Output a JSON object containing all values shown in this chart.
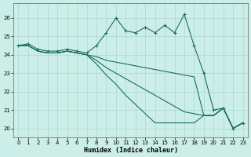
{
  "title": "",
  "xlabel": "Humidex (Indice chaleur)",
  "xlim": [
    -0.5,
    23.5
  ],
  "ylim": [
    19.5,
    26.8
  ],
  "yticks": [
    20,
    21,
    22,
    23,
    24,
    25,
    26
  ],
  "xticks": [
    0,
    1,
    2,
    3,
    4,
    5,
    6,
    7,
    8,
    9,
    10,
    11,
    12,
    13,
    14,
    15,
    16,
    17,
    18,
    19,
    20,
    21,
    22,
    23
  ],
  "background_color": "#cceee8",
  "grid_color": "#aad8d0",
  "line_color": "#1a6e60",
  "line1": [
    24.5,
    24.6,
    24.3,
    24.2,
    24.2,
    24.3,
    24.2,
    24.1,
    24.5,
    25.2,
    26.0,
    25.3,
    25.2,
    25.5,
    25.2,
    25.6,
    25.2,
    26.2,
    24.5,
    23.0,
    21.0,
    21.1,
    20.0,
    20.3
  ],
  "line2": [
    24.5,
    24.5,
    24.2,
    24.1,
    24.1,
    24.2,
    24.1,
    24.0,
    23.9,
    23.7,
    23.6,
    23.5,
    23.4,
    23.3,
    23.2,
    23.1,
    23.0,
    22.9,
    22.8,
    20.7,
    20.7,
    21.1,
    20.0,
    20.3
  ],
  "line3": [
    24.5,
    24.5,
    24.2,
    24.1,
    24.1,
    24.2,
    24.1,
    24.0,
    23.7,
    23.3,
    23.0,
    22.7,
    22.4,
    22.1,
    21.8,
    21.5,
    21.2,
    20.9,
    20.8,
    20.7,
    20.7,
    21.1,
    20.0,
    20.3
  ],
  "line4": [
    24.5,
    24.5,
    24.2,
    24.1,
    24.1,
    24.2,
    24.1,
    24.0,
    23.5,
    22.9,
    22.4,
    21.8,
    21.3,
    20.8,
    20.3,
    20.3,
    20.3,
    20.3,
    20.3,
    20.7,
    20.7,
    21.1,
    20.0,
    20.3
  ]
}
